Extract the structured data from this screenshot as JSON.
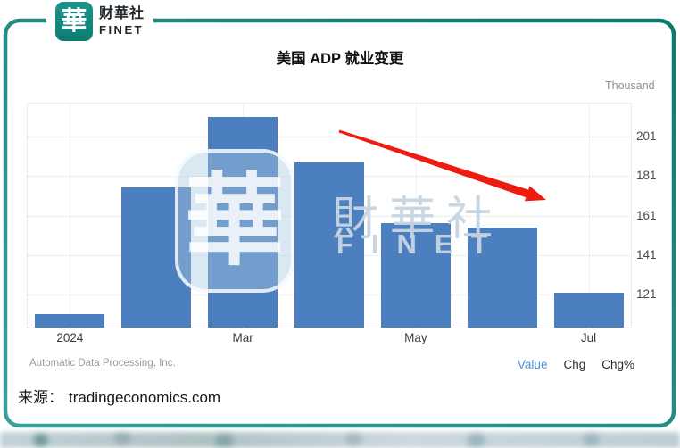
{
  "brand": {
    "logo_char": "華",
    "name_cn": "财華社",
    "name_en": "FINET",
    "teal": "#15837a"
  },
  "chart_data": {
    "type": "bar",
    "title": "美国 ADP 就业变更",
    "unit_label": "Thousand",
    "values": [
      111,
      175,
      211,
      188,
      157,
      155,
      122
    ],
    "x_tick_labels": [
      {
        "bar_index": 0,
        "label": "2024"
      },
      {
        "bar_index": 2,
        "label": "Mar"
      },
      {
        "bar_index": 4,
        "label": "May"
      },
      {
        "bar_index": 6,
        "label": "Jul"
      }
    ],
    "y_ticks": [
      201,
      181,
      161,
      141,
      121
    ],
    "y_min": 104,
    "y_max": 218,
    "y_axis_side": "right",
    "bar_color": "#4c7fc0",
    "grid": true,
    "source_note": "Automatic Data Processing, Inc.",
    "annotation": {
      "type": "arrow",
      "direction": "down-right",
      "color": "#ee1b10"
    }
  },
  "tabs_bar": {
    "items": [
      {
        "label": "Value",
        "active": true
      },
      {
        "label": "Chg",
        "active": false
      },
      {
        "label": "Chg%",
        "active": false
      }
    ],
    "active_color": "#4a90d8",
    "inactive_color": "#2e2e2e"
  },
  "watermark": {
    "logo_char": "華",
    "text_cn": "財華社",
    "text_en": "FINET"
  },
  "footer": {
    "source_label": "来源：",
    "source_value": "tradingeconomics.com"
  }
}
